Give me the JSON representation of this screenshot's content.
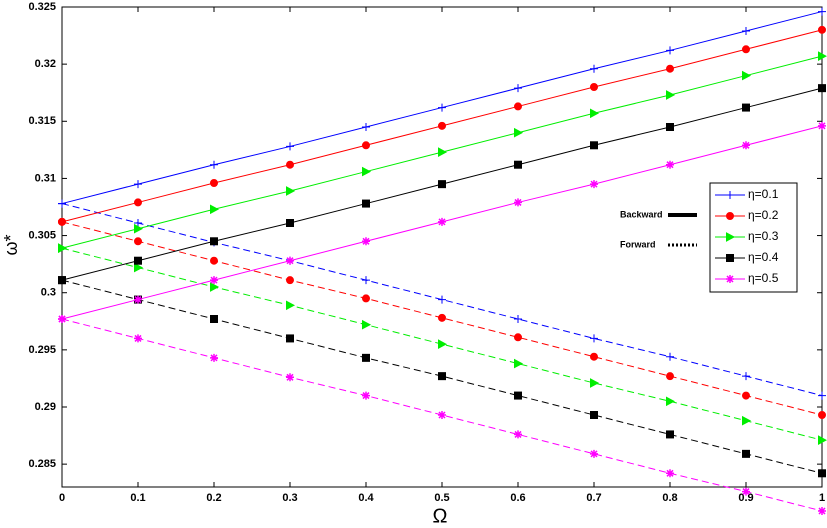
{
  "chart_data": {
    "type": "line",
    "x_label": "Ω",
    "y_label": "ω*",
    "x": [
      0,
      0.1,
      0.2,
      0.3,
      0.4,
      0.5,
      0.6,
      0.7,
      0.8,
      0.9,
      1
    ],
    "xlim": [
      0,
      1
    ],
    "xticks": [
      0,
      0.1,
      0.2,
      0.3,
      0.4,
      0.5,
      0.6,
      0.7,
      0.8,
      0.9,
      1
    ],
    "ylim": [
      0.283,
      0.325
    ],
    "yticks": [
      0.285,
      0.29,
      0.295,
      0.3,
      0.305,
      0.31,
      0.315,
      0.32,
      0.325
    ],
    "line_styles": [
      {
        "label": "Backward",
        "dash": "solid"
      },
      {
        "label": "Forward",
        "dash": "dotted"
      }
    ],
    "series": [
      {
        "name": "η=0.1",
        "color": "#0000ff",
        "marker": "plus",
        "backward": [
          0.3078,
          0.3095,
          0.3112,
          0.3128,
          0.3145,
          0.3162,
          0.3179,
          0.3196,
          0.3212,
          0.3229,
          0.3246
        ],
        "forward": [
          0.3078,
          0.3061,
          0.3044,
          0.3028,
          0.3011,
          0.2994,
          0.2977,
          0.296,
          0.2944,
          0.2927,
          0.291
        ]
      },
      {
        "name": "η=0.2",
        "color": "#ff0000",
        "marker": "circle",
        "backward": [
          0.3062,
          0.3079,
          0.3096,
          0.3112,
          0.3129,
          0.3146,
          0.3163,
          0.318,
          0.3196,
          0.3213,
          0.323
        ],
        "forward": [
          0.3062,
          0.3045,
          0.3028,
          0.3011,
          0.2995,
          0.2978,
          0.2961,
          0.2944,
          0.2927,
          0.291,
          0.2893
        ]
      },
      {
        "name": "η=0.3",
        "color": "#00ee00",
        "marker": "triangle",
        "backward": [
          0.3039,
          0.3056,
          0.3073,
          0.3089,
          0.3106,
          0.3123,
          0.314,
          0.3157,
          0.3173,
          0.319,
          0.3207
        ],
        "forward": [
          0.3039,
          0.3022,
          0.3005,
          0.2989,
          0.2972,
          0.2955,
          0.2938,
          0.2921,
          0.2905,
          0.2888,
          0.2871
        ]
      },
      {
        "name": "η=0.4",
        "color": "#000000",
        "marker": "square",
        "backward": [
          0.3011,
          0.3028,
          0.3045,
          0.3061,
          0.3078,
          0.3095,
          0.3112,
          0.3129,
          0.3145,
          0.3162,
          0.3179
        ],
        "forward": [
          0.3011,
          0.2994,
          0.2977,
          0.296,
          0.2943,
          0.2927,
          0.291,
          0.2893,
          0.2876,
          0.2859,
          0.2842
        ]
      },
      {
        "name": "η=0.5",
        "color": "#ff00ff",
        "marker": "star",
        "backward": [
          0.2977,
          0.2994,
          0.3011,
          0.3028,
          0.3045,
          0.3062,
          0.3079,
          0.3095,
          0.3112,
          0.3129,
          0.3146
        ],
        "forward": [
          0.2977,
          0.296,
          0.2943,
          0.2926,
          0.291,
          0.2893,
          0.2876,
          0.2859,
          0.2842,
          0.2826,
          0.2809
        ]
      }
    ]
  }
}
